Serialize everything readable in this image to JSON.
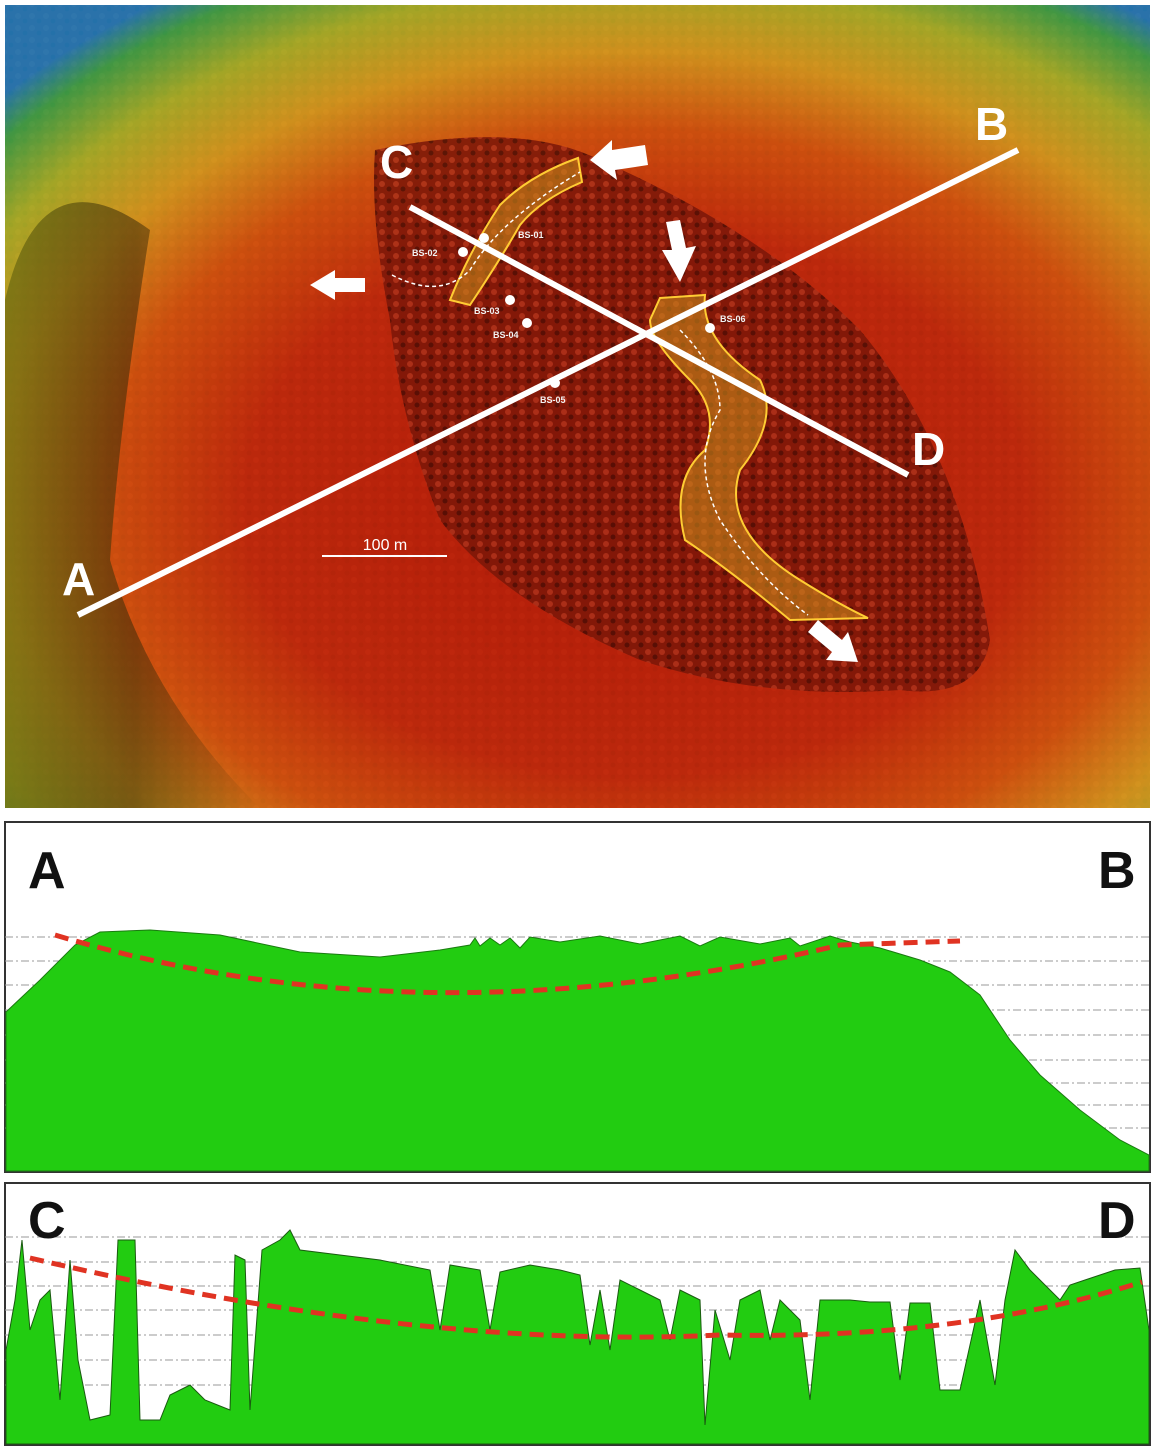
{
  "map": {
    "profile_lines": [
      {
        "start": "A",
        "end": "B"
      },
      {
        "start": "C",
        "end": "D"
      }
    ],
    "scale_bar": "100 m",
    "sites": [
      "BS-01",
      "BS-02",
      "BS-03",
      "BS-04",
      "BS-05",
      "BS-06"
    ]
  },
  "profiles": [
    {
      "start": "A",
      "end": "B"
    },
    {
      "start": "C",
      "end": "D"
    }
  ]
}
